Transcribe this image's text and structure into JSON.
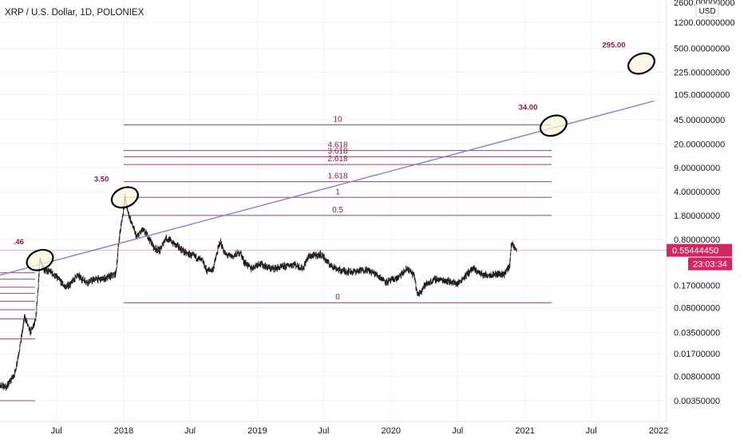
{
  "header": {
    "title": "XRP / U.S. Dollar, 1D, POLONIEX"
  },
  "currency_button": "USD",
  "price_tag": {
    "value": "0.55444450",
    "timer": "23:03:34",
    "color": "#d2265f"
  },
  "colors": {
    "candle": "#1a1a1a",
    "trend": "#7f7fd9",
    "fib": "#a0406b",
    "label": "#8b1a4a",
    "ellipse_fill": "#fbf6dc"
  },
  "chart_data": {
    "type": "line",
    "title": "XRP / U.S. Dollar, 1D, POLONIEX",
    "y_scale": "log",
    "y_ticks": [
      {
        "value": 2600,
        "label": "2600.00000000"
      },
      {
        "value": 1200,
        "label": "1200.00000000"
      },
      {
        "value": 500,
        "label": "500.00000000"
      },
      {
        "value": 225,
        "label": "225.00000000"
      },
      {
        "value": 105,
        "label": "105.00000000"
      },
      {
        "value": 45,
        "label": "45.00000000"
      },
      {
        "value": 20,
        "label": "20.00000000"
      },
      {
        "value": 9,
        "label": "9.00000000"
      },
      {
        "value": 4,
        "label": "4.00000000"
      },
      {
        "value": 1.8,
        "label": "1.80000000"
      },
      {
        "value": 0.8,
        "label": "0.80000000"
      },
      {
        "value": 0.17,
        "label": "0.17000000"
      },
      {
        "value": 0.08,
        "label": "0.08000000"
      },
      {
        "value": 0.035,
        "label": "0.03500000"
      },
      {
        "value": 0.017,
        "label": "0.01700000"
      },
      {
        "value": 0.008,
        "label": "0.00800000"
      },
      {
        "value": 0.0035,
        "label": "0.00350000"
      }
    ],
    "x_ticks": [
      {
        "date": "2017-07-01",
        "label": "Jul"
      },
      {
        "date": "2018-01-01",
        "label": "2018"
      },
      {
        "date": "2018-07-01",
        "label": "Jul"
      },
      {
        "date": "2019-01-01",
        "label": "2019"
      },
      {
        "date": "2019-07-01",
        "label": "Jul"
      },
      {
        "date": "2020-01-01",
        "label": "2020"
      },
      {
        "date": "2020-07-01",
        "label": "Jul"
      },
      {
        "date": "2021-01-01",
        "label": "2021"
      },
      {
        "date": "2021-07-01",
        "label": "Jul"
      },
      {
        "date": "2022-01-01",
        "label": "2022"
      }
    ],
    "series": [
      {
        "values": [
          {
            "x": "2017-01-01",
            "y": 0.0065
          },
          {
            "x": "2017-02-15",
            "y": 0.0055
          },
          {
            "x": "2017-03-10",
            "y": 0.009
          },
          {
            "x": "2017-03-25",
            "y": 0.025
          },
          {
            "x": "2017-04-05",
            "y": 0.06
          },
          {
            "x": "2017-04-20",
            "y": 0.035
          },
          {
            "x": "2017-05-05",
            "y": 0.05
          },
          {
            "x": "2017-05-17",
            "y": 0.4
          },
          {
            "x": "2017-05-30",
            "y": 0.28
          },
          {
            "x": "2017-06-15",
            "y": 0.27
          },
          {
            "x": "2017-07-10",
            "y": 0.2
          },
          {
            "x": "2017-07-25",
            "y": 0.16
          },
          {
            "x": "2017-08-10",
            "y": 0.18
          },
          {
            "x": "2017-08-25",
            "y": 0.24
          },
          {
            "x": "2017-09-10",
            "y": 0.21
          },
          {
            "x": "2017-09-25",
            "y": 0.19
          },
          {
            "x": "2017-10-15",
            "y": 0.21
          },
          {
            "x": "2017-11-05",
            "y": 0.21
          },
          {
            "x": "2017-11-25",
            "y": 0.23
          },
          {
            "x": "2017-12-10",
            "y": 0.25
          },
          {
            "x": "2017-12-20",
            "y": 0.9
          },
          {
            "x": "2017-12-30",
            "y": 2.0
          },
          {
            "x": "2018-01-04",
            "y": 3.3
          },
          {
            "x": "2018-01-10",
            "y": 2.2
          },
          {
            "x": "2018-01-20",
            "y": 1.5
          },
          {
            "x": "2018-02-05",
            "y": 0.85
          },
          {
            "x": "2018-02-20",
            "y": 1.1
          },
          {
            "x": "2018-03-05",
            "y": 0.95
          },
          {
            "x": "2018-03-25",
            "y": 0.6
          },
          {
            "x": "2018-04-10",
            "y": 0.55
          },
          {
            "x": "2018-04-25",
            "y": 0.85
          },
          {
            "x": "2018-05-10",
            "y": 0.75
          },
          {
            "x": "2018-05-30",
            "y": 0.62
          },
          {
            "x": "2018-06-20",
            "y": 0.5
          },
          {
            "x": "2018-07-15",
            "y": 0.45
          },
          {
            "x": "2018-08-05",
            "y": 0.38
          },
          {
            "x": "2018-08-15",
            "y": 0.28
          },
          {
            "x": "2018-09-01",
            "y": 0.29
          },
          {
            "x": "2018-09-21",
            "y": 0.75
          },
          {
            "x": "2018-10-05",
            "y": 0.48
          },
          {
            "x": "2018-10-25",
            "y": 0.45
          },
          {
            "x": "2018-11-15",
            "y": 0.52
          },
          {
            "x": "2018-11-25",
            "y": 0.38
          },
          {
            "x": "2018-12-15",
            "y": 0.3
          },
          {
            "x": "2019-01-05",
            "y": 0.36
          },
          {
            "x": "2019-02-05",
            "y": 0.3
          },
          {
            "x": "2019-03-05",
            "y": 0.31
          },
          {
            "x": "2019-04-10",
            "y": 0.35
          },
          {
            "x": "2019-05-05",
            "y": 0.3
          },
          {
            "x": "2019-05-20",
            "y": 0.45
          },
          {
            "x": "2019-06-25",
            "y": 0.48
          },
          {
            "x": "2019-07-15",
            "y": 0.35
          },
          {
            "x": "2019-08-15",
            "y": 0.28
          },
          {
            "x": "2019-09-20",
            "y": 0.27
          },
          {
            "x": "2019-10-25",
            "y": 0.29
          },
          {
            "x": "2019-11-20",
            "y": 0.25
          },
          {
            "x": "2019-12-20",
            "y": 0.19
          },
          {
            "x": "2020-01-20",
            "y": 0.22
          },
          {
            "x": "2020-02-15",
            "y": 0.3
          },
          {
            "x": "2020-03-05",
            "y": 0.23
          },
          {
            "x": "2020-03-13",
            "y": 0.12
          },
          {
            "x": "2020-04-01",
            "y": 0.17
          },
          {
            "x": "2020-05-01",
            "y": 0.21
          },
          {
            "x": "2020-06-01",
            "y": 0.2
          },
          {
            "x": "2020-07-01",
            "y": 0.18
          },
          {
            "x": "2020-08-10",
            "y": 0.3
          },
          {
            "x": "2020-09-10",
            "y": 0.24
          },
          {
            "x": "2020-10-15",
            "y": 0.25
          },
          {
            "x": "2020-11-05",
            "y": 0.25
          },
          {
            "x": "2020-11-20",
            "y": 0.33
          },
          {
            "x": "2020-11-24",
            "y": 0.7
          },
          {
            "x": "2020-12-01",
            "y": 0.62
          },
          {
            "x": "2020-12-10",
            "y": 0.55
          }
        ]
      }
    ],
    "trendline": [
      {
        "x": "2017-01-01",
        "y": 0.22
      },
      {
        "x": "2021-12-20",
        "y": 85
      }
    ],
    "fib_levels": [
      {
        "label": "0",
        "value": 0.095
      },
      {
        "label": "0.5",
        "value": 1.8
      },
      {
        "label": "1",
        "value": 3.3
      },
      {
        "label": "1.618",
        "value": 5.6
      },
      {
        "label": "2.618",
        "value": 10
      },
      {
        "label": "3.618",
        "value": 13
      },
      {
        "label": "4.618",
        "value": 16
      },
      {
        "label": "10",
        "value": 38
      }
    ],
    "fib_range": {
      "x_start": "2018-01-01",
      "x_end": "2021-03-15"
    },
    "left_levels": [
      0.0035,
      0.028,
      0.055,
      0.075,
      0.1,
      0.13,
      0.16,
      0.21,
      0.26
    ],
    "annotations": [
      {
        "text": ".46",
        "x": "2017-05-17",
        "y": 0.4,
        "circled": true
      },
      {
        "text": "3.50",
        "x": "2018-01-04",
        "y": 3.3,
        "circled": true
      },
      {
        "text": "34.00",
        "x": "2021-03-20",
        "y": 37,
        "circled": true
      },
      {
        "text": "295.00",
        "x": "2021-11-15",
        "y": 300,
        "circled": true
      }
    ],
    "current_price": 0.5544445
  }
}
